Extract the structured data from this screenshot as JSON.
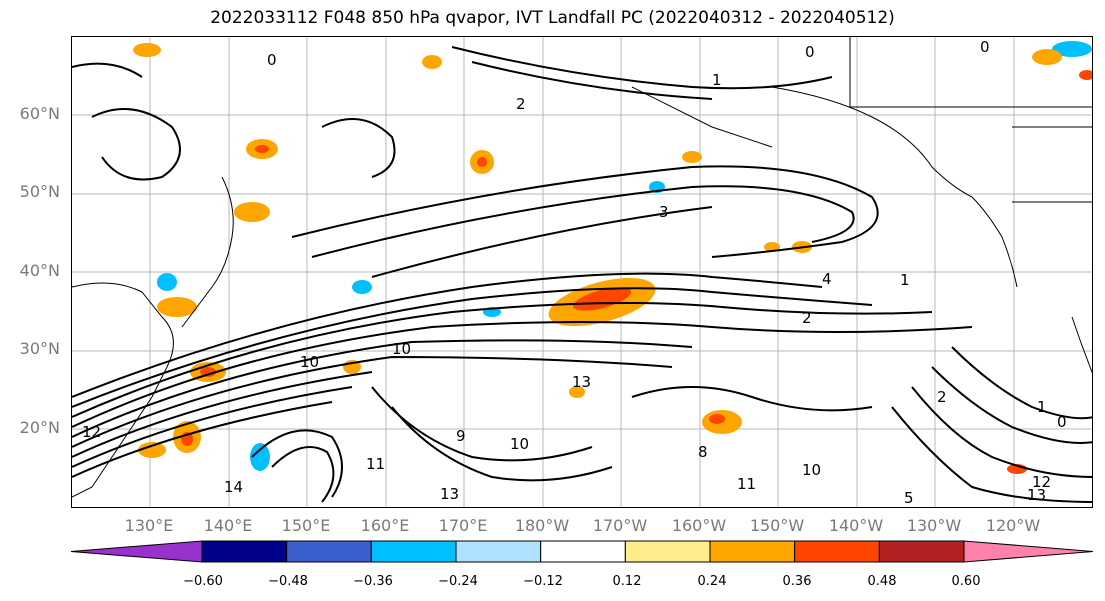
{
  "title": "2022033112 F048 850 hPa qvapor, IVT Landfall PC (2022040312 - 2022040512)",
  "map": {
    "lat_labels": [
      "60°N",
      "50°N",
      "40°N",
      "30°N",
      "20°N"
    ],
    "lon_labels": [
      "130°E",
      "140°E",
      "150°E",
      "160°E",
      "170°E",
      "180°W",
      "170°W",
      "160°W",
      "150°W",
      "140°W",
      "130°W",
      "120°W"
    ],
    "contour_labels": [
      "0",
      "0",
      "0",
      "1",
      "2",
      "3",
      "4",
      "1",
      "2",
      "10",
      "10",
      "12",
      "14",
      "11",
      "13",
      "13",
      "10",
      "11",
      "8",
      "9",
      "13",
      "12",
      "10",
      "2",
      "1",
      "0",
      "5"
    ]
  },
  "colorbar": {
    "ticks": [
      "−0.60",
      "−0.48",
      "−0.36",
      "−0.24",
      "−0.12",
      "0.12",
      "0.24",
      "0.36",
      "0.48",
      "0.60"
    ],
    "colors": [
      "#9932cc",
      "#00008b",
      "#3a5fcd",
      "#00bfff",
      "#b0e2ff",
      "#ffffff",
      "#ffec8b",
      "#ffa500",
      "#ff4500",
      "#b22222",
      "#ff82ab"
    ]
  }
}
